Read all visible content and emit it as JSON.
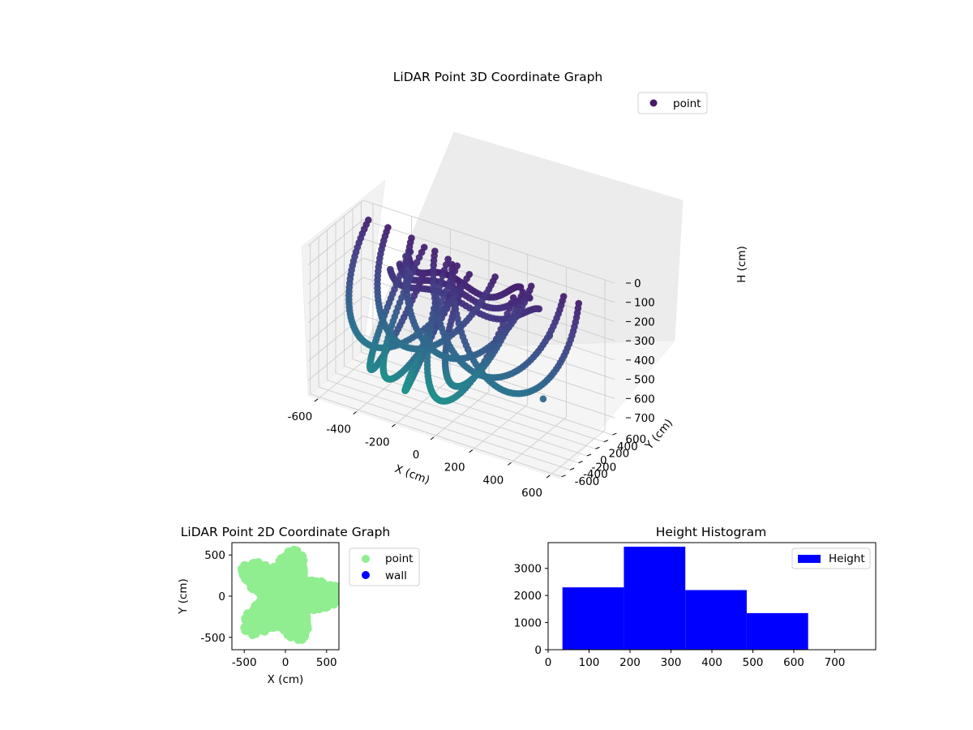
{
  "chart_data": [
    {
      "type": "scatter3d",
      "title": "LiDAR Point 3D Coordinate Graph",
      "xlabel": "X (cm)",
      "ylabel": "Y (cm)",
      "zlabel": "H (cm)",
      "xlim": [
        -650,
        650
      ],
      "ylim": [
        -650,
        650
      ],
      "zlim": [
        0,
        780
      ],
      "z_inverted": true,
      "xticks": [
        -600,
        -400,
        -200,
        0,
        200,
        400,
        600
      ],
      "yticks": [
        -600,
        -400,
        -200,
        0,
        200,
        400,
        600
      ],
      "zticks": [
        0,
        100,
        200,
        300,
        400,
        500,
        600,
        700
      ],
      "legend": [
        {
          "name": "point",
          "color": "#481a6c"
        }
      ],
      "legend_placement": "top-right",
      "colormap": "viridis",
      "grid": true,
      "series": [
        {
          "name": "point",
          "description_of_shape": "bowl-shaped fans of arc-like strokes",
          "arcs": [
            {
              "cx": -250,
              "cy": 250,
              "r": 420,
              "depth": 560,
              "a0": 150,
              "a1": 320
            },
            {
              "cx": -150,
              "cy": 300,
              "r": 380,
              "depth": 520,
              "a0": 160,
              "a1": 330
            },
            {
              "cx": 0,
              "cy": 300,
              "r": 380,
              "depth": 500,
              "a0": 170,
              "a1": 340
            },
            {
              "cx": 150,
              "cy": 250,
              "r": 380,
              "depth": 520,
              "a0": 180,
              "a1": 350
            },
            {
              "cx": 250,
              "cy": 150,
              "r": 360,
              "depth": 540,
              "a0": 190,
              "a1": 360
            },
            {
              "cx": -100,
              "cy": 0,
              "r": 330,
              "depth": 680,
              "a0": 120,
              "a1": 300
            },
            {
              "cx": 100,
              "cy": 0,
              "r": 300,
              "depth": 690,
              "a0": 140,
              "a1": 320
            },
            {
              "cx": 0,
              "cy": -150,
              "r": 280,
              "depth": 700,
              "a0": 100,
              "a1": 280
            },
            {
              "cx": 200,
              "cy": -200,
              "r": 260,
              "depth": 620,
              "a0": 60,
              "a1": 240
            },
            {
              "cx": -200,
              "cy": -150,
              "r": 260,
              "depth": 640,
              "a0": 110,
              "a1": 290
            }
          ],
          "outliers": [
            [
              500,
              -350,
              470
            ],
            [
              430,
              120,
              250
            ],
            [
              -380,
              420,
              160
            ]
          ]
        }
      ]
    },
    {
      "type": "scatter",
      "title": "LiDAR Point 2D Coordinate Graph",
      "xlabel": "X (cm)",
      "ylabel": "Y (cm)",
      "xlim": [
        -650,
        650
      ],
      "ylim": [
        -650,
        650
      ],
      "xticks": [
        -500,
        0,
        500
      ],
      "yticks": [
        -500,
        0,
        500
      ],
      "legend_placement": "outside-right",
      "series": [
        {
          "name": "point",
          "color": "#90ee90",
          "extent": {
            "x": [
              -620,
              620
            ],
            "y": [
              -600,
              600
            ]
          }
        },
        {
          "name": "wall",
          "color": "#0000ff",
          "points": []
        }
      ]
    },
    {
      "type": "bar",
      "title": "Height Histogram",
      "xlim": [
        0,
        800
      ],
      "ylim": [
        0,
        3950
      ],
      "xticks": [
        0,
        100,
        200,
        300,
        400,
        500,
        600,
        700
      ],
      "yticks": [
        0,
        1000,
        2000,
        3000
      ],
      "legend_placement": "top-right",
      "series": [
        {
          "name": "Height",
          "color": "#0000ff",
          "bins": [
            {
              "x0": 35,
              "x1": 185,
              "count": 2300
            },
            {
              "x0": 185,
              "x1": 335,
              "count": 3800
            },
            {
              "x0": 335,
              "x1": 485,
              "count": 2200
            },
            {
              "x0": 485,
              "x1": 635,
              "count": 1350
            }
          ]
        }
      ]
    }
  ]
}
